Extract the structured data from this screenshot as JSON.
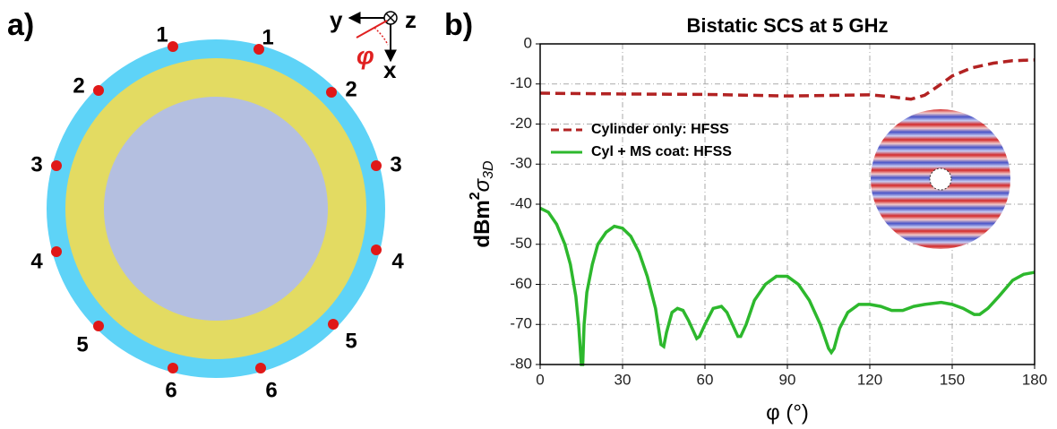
{
  "panel_a": {
    "label": "a)",
    "point_labels": [
      "1",
      "1",
      "2",
      "2",
      "3",
      "3",
      "4",
      "4",
      "5",
      "5",
      "6",
      "6"
    ],
    "axes": {
      "y": "y",
      "z": "z",
      "x": "x",
      "angle": "φ"
    }
  },
  "chart_data": {
    "type": "line",
    "label": "b)",
    "title": "Bistatic SCS at 5 GHz",
    "xlabel": "φ (°)",
    "ylabel": [
      "dBm",
      "2",
      "σ",
      "3D"
    ],
    "xlim": [
      0,
      180
    ],
    "xticks": [
      0,
      30,
      60,
      90,
      120,
      150,
      180
    ],
    "ylim": [
      -80,
      0
    ],
    "yticks": [
      -80,
      -70,
      -60,
      -50,
      -40,
      -30,
      -20,
      -10,
      0
    ],
    "grid": true,
    "legend": "center left",
    "series": [
      {
        "name": "Cylinder only: HFSS",
        "color": "#b22222",
        "linestyle": "dashed",
        "x": [
          0,
          30,
          60,
          90,
          120,
          128,
          135,
          140,
          145,
          150,
          157,
          165,
          172,
          180
        ],
        "values": [
          -12.3,
          -12.5,
          -12.6,
          -13,
          -12.7,
          -13.2,
          -13.8,
          -12.8,
          -10.5,
          -8,
          -6,
          -4.8,
          -4.2,
          -4
        ]
      },
      {
        "name": "Cyl + MS coat: HFSS",
        "color": "#2db82d",
        "linestyle": "solid",
        "x": [
          0,
          3,
          6,
          9,
          11,
          13,
          14,
          15,
          15.5,
          16,
          17,
          19,
          21,
          24,
          27,
          30,
          33,
          36,
          39,
          42,
          44,
          45,
          46,
          48,
          50,
          52,
          54,
          56,
          57,
          58,
          60,
          63,
          66,
          68,
          70,
          72,
          73,
          75,
          78,
          82,
          86,
          90,
          94,
          98,
          102,
          105,
          106,
          107,
          109,
          112,
          116,
          120,
          124,
          128,
          132,
          136,
          140,
          146,
          150,
          154,
          158,
          160,
          163,
          167,
          172,
          176,
          180
        ],
        "values": [
          -41,
          -42,
          -45,
          -50,
          -55,
          -63,
          -70,
          -80,
          -80,
          -70,
          -62,
          -55,
          -50,
          -47,
          -45.5,
          -46,
          -48,
          -52,
          -58,
          -66,
          -75,
          -75.5,
          -72,
          -67,
          -66,
          -66.5,
          -69,
          -72,
          -73.5,
          -73,
          -70,
          -66,
          -65.5,
          -67,
          -70,
          -73,
          -73,
          -70,
          -64,
          -60,
          -58,
          -58,
          -60,
          -64,
          -70,
          -76,
          -77,
          -76,
          -71,
          -67,
          -65,
          -65,
          -65.5,
          -66.5,
          -66.5,
          -65.5,
          -65,
          -64.5,
          -65,
          -66,
          -67.5,
          -67.5,
          -66,
          -63,
          -59,
          -57.5,
          -57
        ]
      }
    ]
  }
}
